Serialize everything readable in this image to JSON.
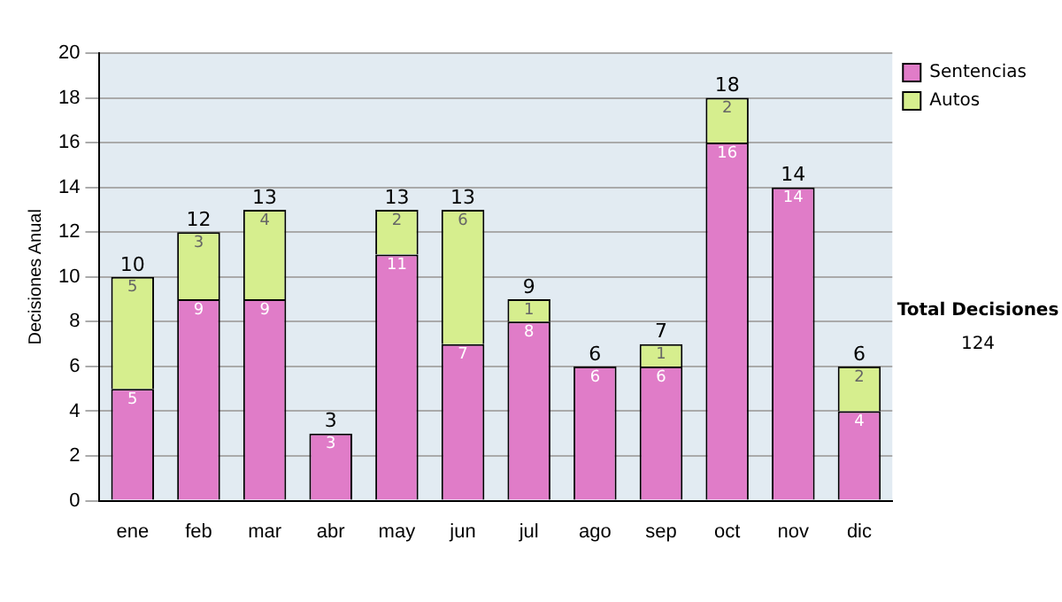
{
  "chart_data": {
    "type": "bar",
    "stacked": true,
    "ylabel": "Decisiones Anual",
    "categories": [
      "ene",
      "feb",
      "mar",
      "abr",
      "may",
      "jun",
      "jul",
      "ago",
      "sep",
      "oct",
      "nov",
      "dic"
    ],
    "series": [
      {
        "name": "Sentencias",
        "color": "#e07cc8",
        "values": [
          5,
          9,
          9,
          3,
          11,
          7,
          8,
          6,
          6,
          16,
          14,
          4
        ],
        "value_labels": [
          "5",
          "9",
          "9",
          "3",
          "11",
          "7",
          "8",
          "6",
          "6",
          "16",
          "14",
          "4"
        ]
      },
      {
        "name": "Autos",
        "color": "#d6ee8e",
        "values": [
          5,
          3,
          4,
          0,
          2,
          6,
          1,
          0,
          1,
          2,
          0,
          2
        ],
        "value_labels": [
          "5",
          "3",
          "4",
          null,
          "2",
          "6",
          "1",
          null,
          "1",
          "2",
          null,
          "2"
        ]
      }
    ],
    "totals": [
      "10",
      "12",
      "13",
      "3",
      "13",
      "13",
      "9",
      "6",
      "7",
      "18",
      "14",
      "6"
    ],
    "ylim": [
      0,
      20
    ],
    "yticks": [
      0,
      2,
      4,
      6,
      8,
      10,
      12,
      14,
      16,
      18,
      20
    ],
    "grid": "y",
    "legend": "right",
    "annotations": [
      "Total Decisiones",
      "124"
    ]
  }
}
